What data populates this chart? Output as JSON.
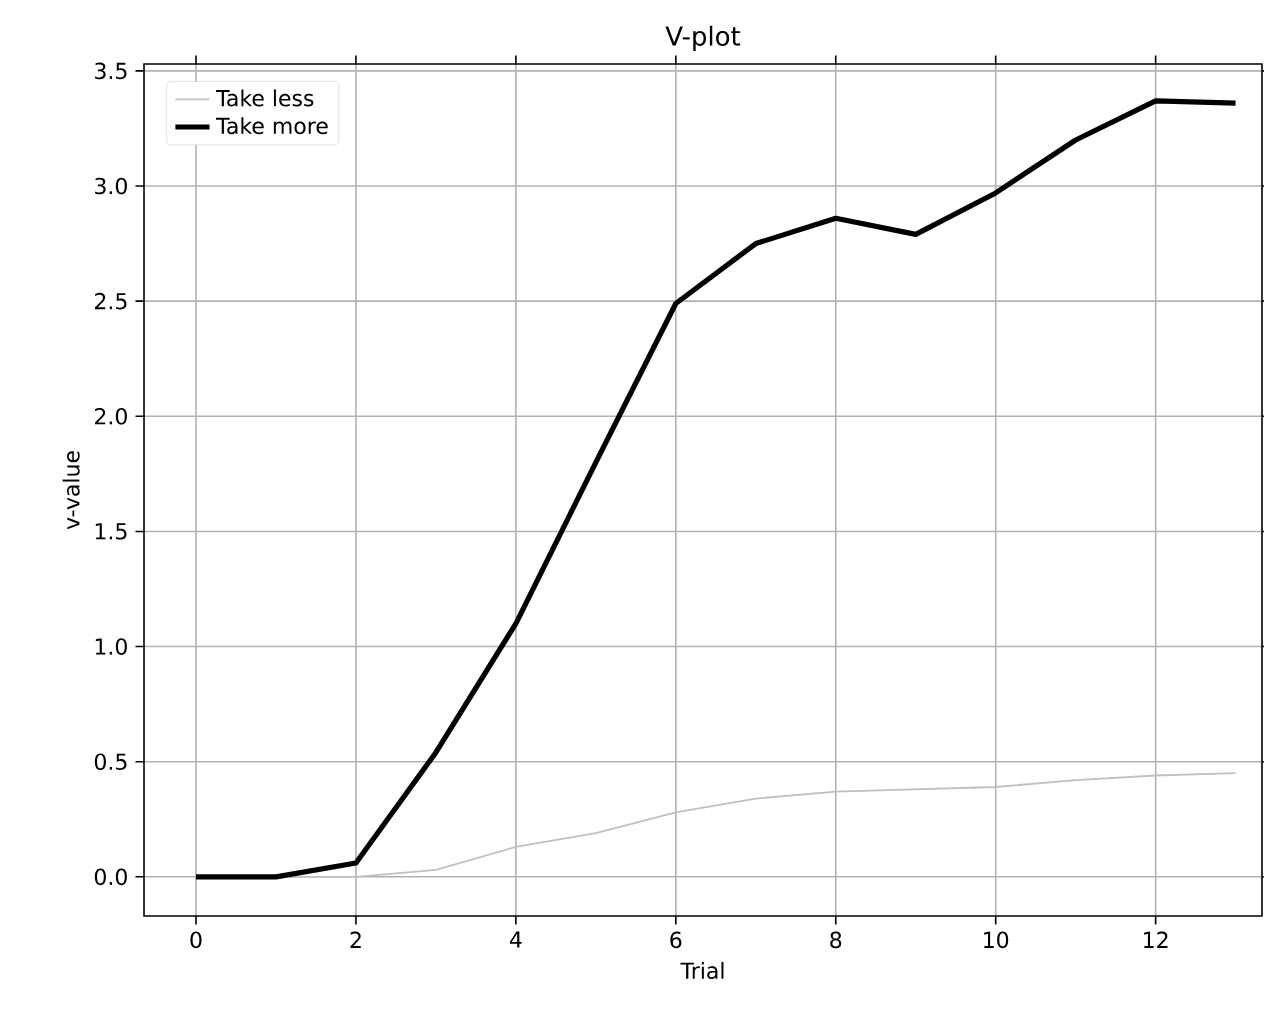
{
  "chart_data": {
    "type": "line",
    "title": "V-plot",
    "xlabel": "Trial",
    "ylabel": "v-value",
    "x": [
      0,
      1,
      2,
      3,
      4,
      5,
      6,
      7,
      8,
      9,
      10,
      11,
      12,
      13
    ],
    "series": [
      {
        "name": "Take less",
        "color": "#c0c0c0",
        "values": [
          0,
          0,
          0,
          0.03,
          0.13,
          0.19,
          0.28,
          0.34,
          0.37,
          0.38,
          0.39,
          0.42,
          0.44,
          0.45
        ]
      },
      {
        "name": "Take more",
        "color": "#000000",
        "values": [
          0,
          0,
          0.06,
          0.54,
          1.1,
          1.8,
          2.49,
          2.75,
          2.86,
          2.79,
          2.97,
          3.2,
          3.37,
          3.36
        ]
      }
    ],
    "xlim": [
      -0.65,
      13.33
    ],
    "ylim": [
      -0.17,
      3.53
    ],
    "xticks": [
      0,
      2,
      4,
      6,
      8,
      10,
      12
    ],
    "yticks": [
      {
        "value": 0,
        "label": "0.0"
      },
      0.5,
      {
        "value": 1,
        "label": "1.0"
      },
      1.5,
      {
        "value": 2,
        "label": "2.0"
      },
      2.5,
      {
        "value": 3,
        "label": "3.0"
      },
      3.5
    ],
    "grid": true,
    "legend": "top left"
  }
}
